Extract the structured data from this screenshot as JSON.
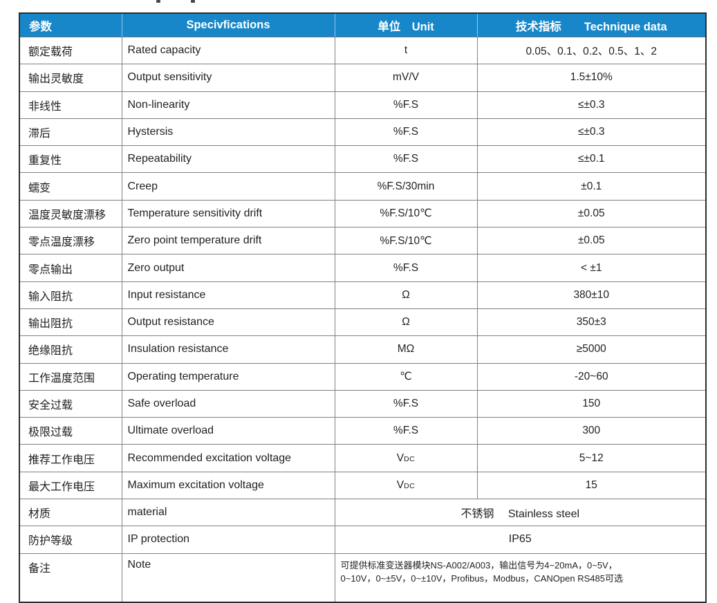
{
  "accent_color": "#1787c9",
  "table": {
    "columns": [
      {
        "label": "参数"
      },
      {
        "label": "Specivfications"
      },
      {
        "label": "单位　Unit"
      },
      {
        "label": "技术指标　　Technique data"
      }
    ],
    "rows": [
      {
        "param": "额定载荷",
        "spec": "Rated capacity",
        "unit": "t",
        "value": "0.05、0.1、0.2、0.5、1、2"
      },
      {
        "param": "输出灵敏度",
        "spec": "Output sensitivity",
        "unit": "mV/V",
        "value": "1.5±10%"
      },
      {
        "param": "非线性",
        "spec": "Non-linearity",
        "unit": "%F.S",
        "value": "≤±0.3"
      },
      {
        "param": "滞后",
        "spec": "Hystersis",
        "unit": "%F.S",
        "value": "≤±0.3"
      },
      {
        "param": "重复性",
        "spec": "Repeatability",
        "unit": "%F.S",
        "value": "≤±0.1"
      },
      {
        "param": "蠕变",
        "spec": "Creep",
        "unit": "%F.S/30min",
        "value": "±0.1"
      },
      {
        "param": "温度灵敏度漂移",
        "spec": "Temperature sensitivity drift",
        "unit": "%F.S/10℃",
        "value": "±0.05"
      },
      {
        "param": "零点温度漂移",
        "spec": "Zero point temperature drift",
        "unit": "%F.S/10℃",
        "value": "±0.05"
      },
      {
        "param": "零点输出",
        "spec": "Zero output",
        "unit": "%F.S",
        "value": "< ±1"
      },
      {
        "param": "输入阻抗",
        "spec": "Input resistance",
        "unit": "Ω",
        "value": "380±10"
      },
      {
        "param": "输出阻抗",
        "spec": "Output resistance",
        "unit": "Ω",
        "value": "350±3"
      },
      {
        "param": "绝缘阻抗",
        "spec": "Insulation resistance",
        "unit": "MΩ",
        "value": "≥5000"
      },
      {
        "param": "工作温度范围",
        "spec": "Operating temperature",
        "unit": "℃",
        "value": "-20~60"
      },
      {
        "param": "安全过载",
        "spec": "Safe overload",
        "unit": "%F.S",
        "value": "150"
      },
      {
        "param": "极限过载",
        "spec": "Ultimate overload",
        "unit": "%F.S",
        "value": "300"
      },
      {
        "param": "推荐工作电压",
        "spec": "Recommended excitation voltage",
        "unit_base": "V",
        "unit_sub": "DC",
        "value": "5~12"
      },
      {
        "param": "最大工作电压",
        "spec": "Maximum excitation voltage",
        "unit_base": "V",
        "unit_sub": "DC",
        "value": "15"
      },
      {
        "param": "材质",
        "spec": "material",
        "merged": "不锈钢　 Stainless steel"
      },
      {
        "param": "防护等级",
        "spec": "IP protection",
        "merged": "IP65"
      },
      {
        "param": "备注",
        "spec": "Note",
        "merged_lines": [
          "可提供标准变送器模块NS-A002/A003，输出信号为4~20mA，0~5V，",
          "0~10V，0~±5V，0~±10V，Profibus，Modbus，CANOpen RS485可选"
        ]
      }
    ]
  }
}
